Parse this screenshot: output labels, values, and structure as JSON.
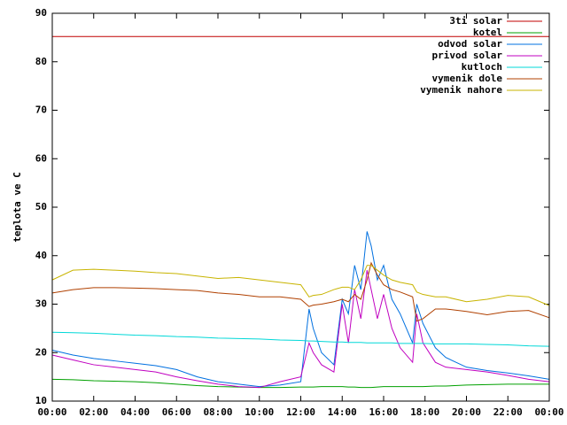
{
  "chart_data": {
    "type": "line",
    "y_label": "teplota ve C",
    "x": [
      0,
      1,
      2,
      3,
      4,
      5,
      6,
      7,
      8,
      9,
      10,
      11,
      12,
      12.4,
      12.6,
      13,
      13.6,
      14,
      14.3,
      14.6,
      14.9,
      15.2,
      15.4,
      15.7,
      16,
      16.4,
      16.8,
      17.4,
      17.6,
      17.9,
      18.5,
      19,
      20,
      21,
      22,
      23,
      24
    ],
    "xlim": [
      0,
      24
    ],
    "xticks": [
      {
        "value": 0,
        "label": "00:00"
      },
      {
        "value": 2,
        "label": "02:00"
      },
      {
        "value": 4,
        "label": "04:00"
      },
      {
        "value": 6,
        "label": "06:00"
      },
      {
        "value": 8,
        "label": "08:00"
      },
      {
        "value": 10,
        "label": "10:00"
      },
      {
        "value": 12,
        "label": "12:00"
      },
      {
        "value": 14,
        "label": "14:00"
      },
      {
        "value": 16,
        "label": "16:00"
      },
      {
        "value": 18,
        "label": "18:00"
      },
      {
        "value": 20,
        "label": "20:00"
      },
      {
        "value": 22,
        "label": "22:00"
      },
      {
        "value": 24,
        "label": "00:00"
      }
    ],
    "ylim": [
      10,
      90
    ],
    "yticks": [
      10,
      20,
      30,
      40,
      50,
      60,
      70,
      80,
      90
    ],
    "grid": false,
    "legend": "top-right",
    "series": [
      {
        "name": "3ti solar",
        "color": "#c00000",
        "values": [
          85.2,
          85.2,
          85.2,
          85.2,
          85.2,
          85.2,
          85.2,
          85.2,
          85.2,
          85.2,
          85.2,
          85.2,
          85.2,
          85.2,
          85.2,
          85.2,
          85.2,
          85.2,
          85.2,
          85.2,
          85.2,
          85.2,
          85.2,
          85.2,
          85.2,
          85.2,
          85.2,
          85.2,
          85.2,
          85.2,
          85.2,
          85.2,
          85.2,
          85.2,
          85.2,
          85.2,
          85.2
        ]
      },
      {
        "name": "kotel",
        "color": "#00a000",
        "values": [
          14.5,
          14.4,
          14.2,
          14.1,
          14,
          13.8,
          13.5,
          13.2,
          13,
          12.9,
          12.8,
          12.8,
          12.9,
          12.9,
          12.9,
          13,
          13,
          13,
          12.9,
          12.9,
          12.8,
          12.8,
          12.8,
          12.9,
          13,
          13,
          13,
          13,
          13,
          13,
          13.1,
          13.1,
          13.3,
          13.4,
          13.5,
          13.5,
          13.5
        ]
      },
      {
        "name": "odvod solar",
        "color": "#0070e0",
        "values": [
          20.5,
          19.5,
          18.8,
          18.3,
          17.8,
          17.3,
          16.5,
          15,
          14,
          13.5,
          13,
          13.3,
          14,
          29,
          25,
          20,
          17.5,
          31,
          28,
          38,
          33,
          45,
          42,
          35,
          38,
          31,
          28,
          22,
          30,
          26,
          21,
          19,
          17,
          16.3,
          15.8,
          15.2,
          14.5
        ]
      },
      {
        "name": "privod solar",
        "color": "#c000c0",
        "values": [
          19.5,
          18.5,
          17.5,
          17,
          16.5,
          16,
          15,
          14.2,
          13.5,
          13,
          12.8,
          14,
          15,
          22,
          20,
          17.5,
          16,
          30,
          22,
          33,
          27,
          37,
          33,
          27,
          32,
          25,
          21,
          18,
          28,
          22,
          18,
          17,
          16.5,
          16,
          15.3,
          14.5,
          14
        ]
      },
      {
        "name": "kutloch",
        "color": "#00d8d8",
        "values": [
          24.2,
          24.1,
          24,
          23.8,
          23.6,
          23.5,
          23.3,
          23.2,
          23,
          22.9,
          22.8,
          22.6,
          22.5,
          22.4,
          22.4,
          22.3,
          22.2,
          22.2,
          22.1,
          22.1,
          22.1,
          22,
          22,
          22,
          22,
          22,
          21.9,
          21.9,
          21.9,
          21.9,
          21.8,
          21.8,
          21.8,
          21.7,
          21.6,
          21.4,
          21.3
        ]
      },
      {
        "name": "vymenik dole",
        "color": "#b04000",
        "values": [
          32.3,
          33,
          33.4,
          33.4,
          33.3,
          33.2,
          33,
          32.8,
          32.3,
          32,
          31.5,
          31.5,
          31,
          29.5,
          29.8,
          30,
          30.5,
          31,
          30.5,
          32,
          31,
          35,
          38.5,
          36,
          34,
          33,
          32.5,
          31.5,
          26.5,
          27,
          29,
          29,
          28.5,
          27.8,
          28.5,
          28.7,
          27.2
        ]
      },
      {
        "name": "vymenik nahore",
        "color": "#c8b400",
        "values": [
          35,
          37,
          37.2,
          37,
          36.8,
          36.5,
          36.3,
          35.8,
          35.3,
          35.5,
          35,
          34.5,
          34,
          31.5,
          31.8,
          32,
          33,
          33.5,
          33.5,
          33,
          35,
          38,
          38,
          37,
          36,
          35,
          34.5,
          34,
          32.5,
          32,
          31.5,
          31.5,
          30.5,
          31,
          31.8,
          31.5,
          29.7
        ]
      }
    ]
  }
}
